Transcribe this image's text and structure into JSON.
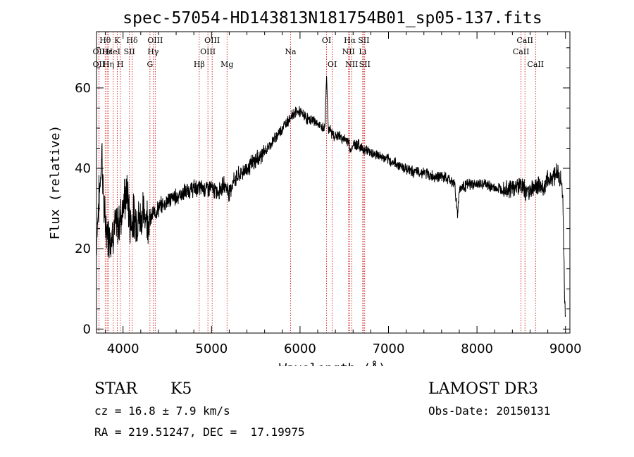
{
  "chart_data": {
    "type": "line",
    "title": "spec-57054-HD143813N181754B01_sp05-137.fits",
    "xlabel": "Wavelength (Å)",
    "ylabel": "Flux (relative)",
    "xlim": [
      3700,
      9050
    ],
    "ylim": [
      -1,
      74
    ],
    "xticks": [
      4000,
      5000,
      6000,
      7000,
      8000,
      9000
    ],
    "yticks": [
      0,
      20,
      40,
      60
    ],
    "colors": {
      "line": "#000000",
      "marker": "#cc0000"
    },
    "spectrum_outline": [
      [
        3700,
        22
      ],
      [
        3720,
        30
      ],
      [
        3740,
        36
      ],
      [
        3760,
        45
      ],
      [
        3780,
        31
      ],
      [
        3800,
        26
      ],
      [
        3830,
        24
      ],
      [
        3860,
        23
      ],
      [
        3900,
        25
      ],
      [
        3950,
        26
      ],
      [
        4000,
        31
      ],
      [
        4050,
        34
      ],
      [
        4080,
        26
      ],
      [
        4120,
        28
      ],
      [
        4150,
        27
      ],
      [
        4200,
        28
      ],
      [
        4250,
        29
      ],
      [
        4300,
        27
      ],
      [
        4350,
        29
      ],
      [
        4400,
        30
      ],
      [
        4450,
        31
      ],
      [
        4500,
        32
      ],
      [
        4600,
        33
      ],
      [
        4700,
        34
      ],
      [
        4800,
        35
      ],
      [
        4900,
        35
      ],
      [
        5000,
        35
      ],
      [
        5050,
        34
      ],
      [
        5100,
        35
      ],
      [
        5150,
        36
      ],
      [
        5200,
        34
      ],
      [
        5250,
        37
      ],
      [
        5300,
        38
      ],
      [
        5400,
        40
      ],
      [
        5500,
        42
      ],
      [
        5600,
        44
      ],
      [
        5700,
        47
      ],
      [
        5800,
        50
      ],
      [
        5900,
        53
      ],
      [
        5950,
        54
      ],
      [
        6000,
        54
      ],
      [
        6050,
        53
      ],
      [
        6100,
        52
      ],
      [
        6150,
        52
      ],
      [
        6200,
        51
      ],
      [
        6250,
        50
      ],
      [
        6280,
        50
      ],
      [
        6300,
        63
      ],
      [
        6320,
        50
      ],
      [
        6350,
        49
      ],
      [
        6400,
        48
      ],
      [
        6450,
        48
      ],
      [
        6500,
        47
      ],
      [
        6550,
        47
      ],
      [
        6563,
        44
      ],
      [
        6600,
        46
      ],
      [
        6650,
        46
      ],
      [
        6700,
        45
      ],
      [
        6800,
        44
      ],
      [
        6900,
        43
      ],
      [
        7000,
        42
      ],
      [
        7100,
        41
      ],
      [
        7200,
        40
      ],
      [
        7300,
        39
      ],
      [
        7400,
        39
      ],
      [
        7500,
        38
      ],
      [
        7600,
        38
      ],
      [
        7700,
        37
      ],
      [
        7750,
        36
      ],
      [
        7780,
        28
      ],
      [
        7800,
        35
      ],
      [
        7900,
        36
      ],
      [
        8000,
        36
      ],
      [
        8100,
        36
      ],
      [
        8200,
        35
      ],
      [
        8300,
        35
      ],
      [
        8400,
        35
      ],
      [
        8500,
        36
      ],
      [
        8550,
        34
      ],
      [
        8600,
        35
      ],
      [
        8650,
        35
      ],
      [
        8700,
        36
      ],
      [
        8750,
        35
      ],
      [
        8800,
        37
      ],
      [
        8850,
        38
      ],
      [
        8900,
        39
      ],
      [
        8950,
        37
      ],
      [
        8970,
        33
      ],
      [
        8990,
        8
      ],
      [
        9000,
        3
      ]
    ],
    "lines": [
      {
        "label": "Hθ",
        "wl": 3798,
        "row": 0
      },
      {
        "label": "OII",
        "wl": 3727,
        "row": 1
      },
      {
        "label": "OII",
        "wl": 3727,
        "row": 2
      },
      {
        "label": "Hε",
        "wl": 3820,
        "row": 1
      },
      {
        "label": "Hη",
        "wl": 3835,
        "row": 2
      },
      {
        "label": "K",
        "wl": 3934,
        "row": 0
      },
      {
        "label": "HeI",
        "wl": 3889,
        "row": 1
      },
      {
        "label": "H",
        "wl": 3969,
        "row": 2
      },
      {
        "label": "Hδ",
        "wl": 4102,
        "row": 0
      },
      {
        "label": "SII",
        "wl": 4072,
        "row": 1
      },
      {
        "label": "OIII",
        "wl": 4363,
        "row": 0
      },
      {
        "label": "Hγ",
        "wl": 4340,
        "row": 1
      },
      {
        "label": "G",
        "wl": 4304,
        "row": 2
      },
      {
        "label": "OIII",
        "wl": 5007,
        "row": 0
      },
      {
        "label": "OIII",
        "wl": 4959,
        "row": 1
      },
      {
        "label": "Hβ",
        "wl": 4861,
        "row": 2
      },
      {
        "label": "Mg",
        "wl": 5175,
        "row": 2
      },
      {
        "label": "Na",
        "wl": 5893,
        "row": 1
      },
      {
        "label": "OI",
        "wl": 6300,
        "row": 0
      },
      {
        "label": "OI",
        "wl": 6364,
        "row": 2
      },
      {
        "label": "Hα",
        "wl": 6563,
        "row": 0
      },
      {
        "label": "SII",
        "wl": 6720,
        "row": 0
      },
      {
        "label": "NII",
        "wl": 6548,
        "row": 1
      },
      {
        "label": "Li",
        "wl": 6708,
        "row": 1
      },
      {
        "label": "NII",
        "wl": 6584,
        "row": 2
      },
      {
        "label": "SII",
        "wl": 6731,
        "row": 2
      },
      {
        "label": "CaII",
        "wl": 8542,
        "row": 0
      },
      {
        "label": "CaII",
        "wl": 8498,
        "row": 1
      },
      {
        "label": "CaII",
        "wl": 8662,
        "row": 2
      }
    ]
  },
  "info": {
    "object_class": "STAR",
    "subclass": "K5",
    "survey": "LAMOST DR3",
    "redshift": "cz = 16.8 ± 7.9 km/s",
    "obs_date": "Obs-Date: 20150131",
    "coords": "RA = 219.51247, DEC =  17.19975"
  }
}
